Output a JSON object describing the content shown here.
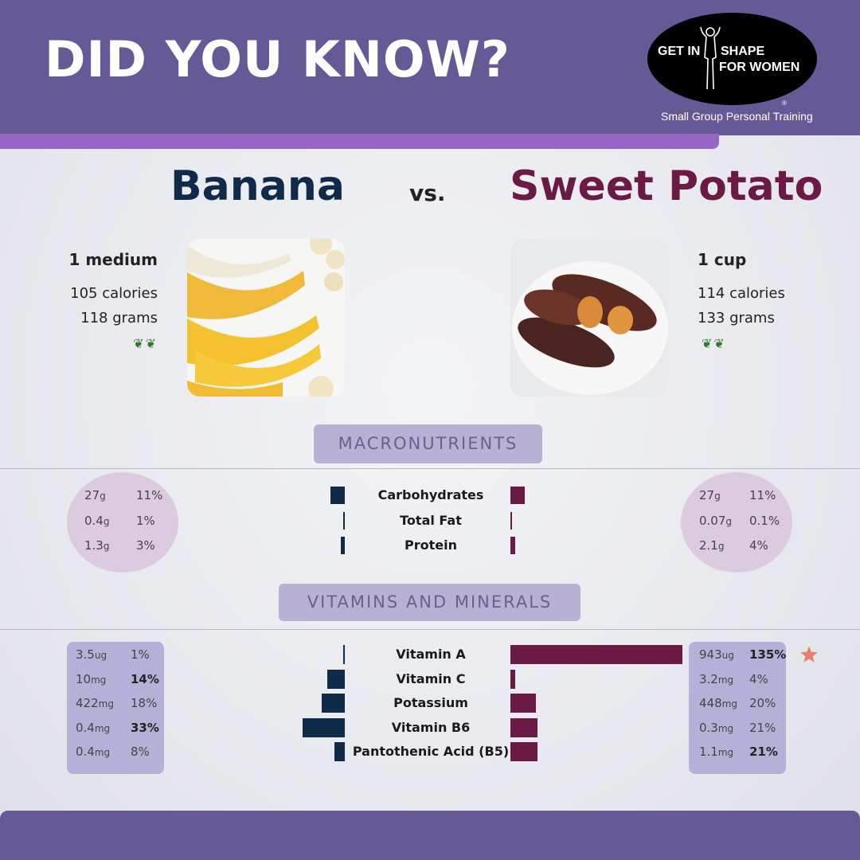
{
  "header": {
    "headline": "DID YOU KNOW?",
    "logo": {
      "line1": "GET IN",
      "line2": "SHAPE",
      "line3": "FOR WOMEN",
      "registered": "®",
      "tagline": "Small Group Personal Training"
    }
  },
  "comparison": {
    "left_title": "Banana",
    "vs": "vs.",
    "right_title": "Sweet Potato"
  },
  "left_food": {
    "serving": "1 medium",
    "calories": "105 calories",
    "grams": "118 grams",
    "leaf_icons": "❦❦"
  },
  "right_food": {
    "serving": "1 cup",
    "calories": "114 calories",
    "grams": "133 grams",
    "leaf_icons": "❦❦"
  },
  "sections": {
    "macros": "MACRONUTRIENTS",
    "vitamins": "VITAMINS AND MINERALS"
  },
  "colors": {
    "banana": "#0f2b4a",
    "sweet_potato": "#6b1a45",
    "header": "#675896",
    "accent": "#9566c7",
    "star": "#e6826a"
  },
  "chart_data": [
    {
      "type": "bar",
      "title": "MACRONUTRIENTS",
      "categories": [
        "Carbohydrates",
        "Total Fat",
        "Protein"
      ],
      "series": [
        {
          "name": "Banana",
          "amounts": [
            [
              "27",
              "g"
            ],
            [
              "0.4",
              "g"
            ],
            [
              "1.3",
              "g"
            ]
          ],
          "percent_labels": [
            "11%",
            "1%",
            "3%"
          ],
          "bold": [
            false,
            false,
            false
          ],
          "values": [
            11,
            1,
            3
          ]
        },
        {
          "name": "Sweet Potato",
          "amounts": [
            [
              "27",
              "g"
            ],
            [
              "0.07",
              "g"
            ],
            [
              "2.1",
              "g"
            ]
          ],
          "percent_labels": [
            "11%",
            "0.1%",
            "4%"
          ],
          "bold": [
            false,
            false,
            false
          ],
          "values": [
            11,
            0.1,
            4
          ]
        }
      ]
    },
    {
      "type": "bar",
      "title": "VITAMINS AND MINERALS",
      "categories": [
        "Vitamin A",
        "Vitamin C",
        "Potassium",
        "Vitamin B6",
        "Pantothenic Acid (B5)"
      ],
      "series": [
        {
          "name": "Banana",
          "amounts": [
            [
              "3.5",
              "ug"
            ],
            [
              "10",
              "mg"
            ],
            [
              "422",
              "mg"
            ],
            [
              "0.4",
              "mg"
            ],
            [
              "0.4",
              "mg"
            ]
          ],
          "percent_labels": [
            "1%",
            "14%",
            "18%",
            "33%",
            "8%"
          ],
          "bold": [
            false,
            true,
            false,
            true,
            false
          ],
          "values": [
            1,
            14,
            18,
            33,
            8
          ]
        },
        {
          "name": "Sweet Potato",
          "amounts": [
            [
              "943",
              "ug"
            ],
            [
              "3.2",
              "mg"
            ],
            [
              "448",
              "mg"
            ],
            [
              "0.3",
              "mg"
            ],
            [
              "1.1",
              "mg"
            ]
          ],
          "percent_labels": [
            "135%",
            "4%",
            "20%",
            "21%",
            "21%"
          ],
          "bold": [
            true,
            false,
            false,
            false,
            true
          ],
          "values": [
            135,
            4,
            20,
            21,
            21
          ]
        }
      ],
      "highlight_icon": "star-icon"
    }
  ]
}
